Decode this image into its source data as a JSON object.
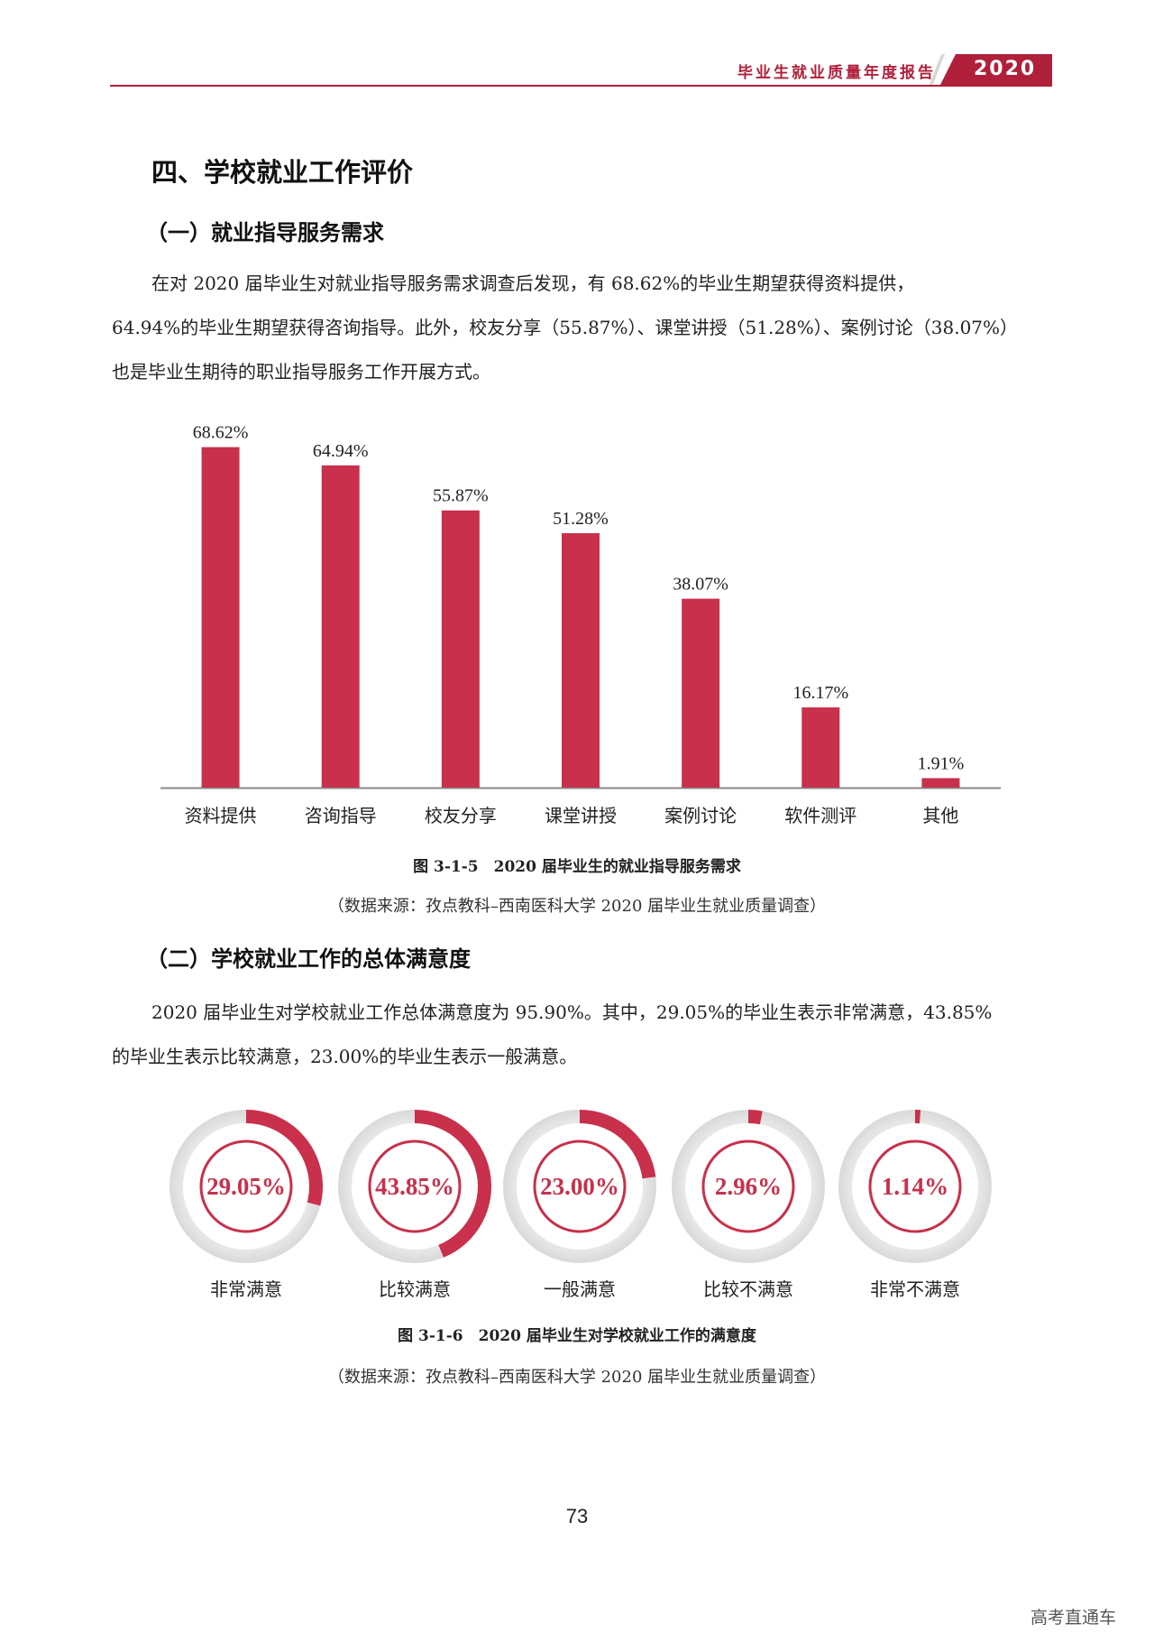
{
  "header": {
    "title": "毕业生就业质量年度报告",
    "year": "2020",
    "accent_color": "#b0203a"
  },
  "section_title": "四、学校就业工作评价",
  "sub1": {
    "title": "（一）就业指导服务需求",
    "paragraph_lines": [
      "在对 2020 届毕业生对就业指导服务需求调查后发现，有 68.62%的毕业生期望获得资料提供，",
      "64.94%的毕业生期望获得咨询指导。此外，校友分享（55.87%）、课堂讲授（51.28%）、案例讨论（38.07%）",
      "也是毕业生期待的职业指导服务工作开展方式。"
    ],
    "figure_caption": "图 3-1-5　2020 届毕业生的就业指导服务需求",
    "figure_source": "（数据来源：孜点教科–西南医科大学 2020 届毕业生就业质量调查）"
  },
  "sub2": {
    "title": "（二）学校就业工作的总体满意度",
    "paragraph_lines": [
      "2020 届毕业生对学校就业工作总体满意度为 95.90%。其中，29.05%的毕业生表示非常满意，43.85%",
      "的毕业生表示比较满意，23.00%的毕业生表示一般满意。"
    ],
    "figure_caption": "图 3-1-6　2020 届毕业生对学校就业工作的满意度",
    "figure_source": "（数据来源：孜点教科–西南医科大学 2020 届毕业生就业质量调查）"
  },
  "chart_data": [
    {
      "type": "bar",
      "categories": [
        "资料提供",
        "咨询指导",
        "校友分享",
        "课堂讲授",
        "案例讨论",
        "软件测评",
        "其他"
      ],
      "values": [
        68.62,
        64.94,
        55.87,
        51.28,
        38.07,
        16.17,
        1.91
      ],
      "data_labels": [
        "68.62%",
        "64.94%",
        "55.87%",
        "51.28%",
        "38.07%",
        "16.17%",
        "1.91%"
      ],
      "ylim": [
        0,
        70
      ],
      "grid": false,
      "color": "#c8304b"
    },
    {
      "type": "pie",
      "style": "donut-gauges",
      "categories": [
        "非常满意",
        "比较满意",
        "一般满意",
        "比较不满意",
        "非常不满意"
      ],
      "values": [
        29.05,
        43.85,
        23.0,
        2.96,
        1.14
      ],
      "data_labels": [
        "29.05%",
        "43.85%",
        "23.00%",
        "2.96%",
        "1.14%"
      ],
      "color": "#c8304b"
    }
  ],
  "page_number": "73",
  "watermark": "高考直通车"
}
